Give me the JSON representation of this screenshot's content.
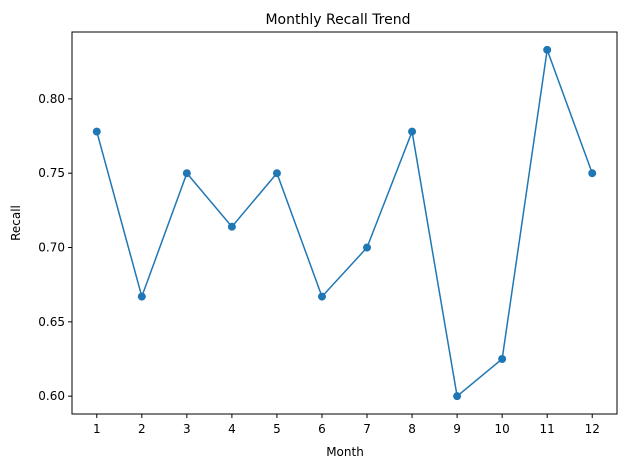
{
  "chart_data": {
    "type": "line",
    "title": "Monthly Recall Trend",
    "xlabel": "Month",
    "ylabel": "Recall",
    "x": [
      1,
      2,
      3,
      4,
      5,
      6,
      7,
      8,
      9,
      10,
      11,
      12
    ],
    "x_tick_labels": [
      "1",
      "2",
      "3",
      "4",
      "5",
      "6",
      "7",
      "8",
      "9",
      "10",
      "11",
      "12"
    ],
    "y_ticks": [
      0.6,
      0.65,
      0.7,
      0.75,
      0.8
    ],
    "y_tick_labels": [
      "0.60",
      "0.65",
      "0.70",
      "0.75",
      "0.80"
    ],
    "xlim": [
      0.45,
      12.55
    ],
    "ylim": [
      0.588,
      0.845
    ],
    "grid": false,
    "series": [
      {
        "values": [
          0.778,
          0.667,
          0.75,
          0.714,
          0.75,
          0.667,
          0.7,
          0.778,
          0.6,
          0.625,
          0.833,
          0.75
        ],
        "color": "#1f77b4",
        "marker": "circle"
      }
    ]
  }
}
